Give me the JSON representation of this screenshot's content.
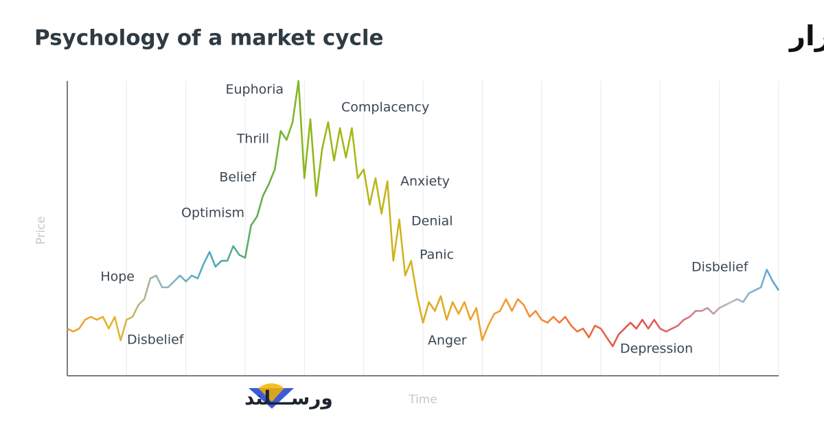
{
  "chart_data": {
    "type": "line",
    "title": "Psychology of a market cycle",
    "subtitle": "نمودار چرخه روانشناسی بازار",
    "brand": "ورســـلند",
    "y_label": "Price",
    "x_label": "Time",
    "ylim": [
      0,
      100
    ],
    "grid": true,
    "colors": [
      "#f29a2e",
      "#e8b52a",
      "#8fb6c2",
      "#4fa8c8",
      "#5eae4e",
      "#8cb81c",
      "#a8b818",
      "#d2b41e",
      "#e2aa22",
      "#f0a030",
      "#f08a3a",
      "#ea6a40",
      "#e5504a",
      "#d9707e",
      "#b4b8c6",
      "#4fa8d0"
    ],
    "values": [
      16,
      15,
      16,
      19,
      20,
      19,
      20,
      16,
      20,
      12,
      19,
      20,
      24,
      26,
      33,
      34,
      30,
      30,
      32,
      34,
      32,
      34,
      33,
      38,
      42,
      37,
      39,
      39,
      44,
      41,
      40,
      51,
      54,
      61,
      65,
      70,
      83,
      80,
      86,
      100,
      67,
      87,
      61,
      77,
      86,
      73,
      84,
      74,
      84,
      67,
      70,
      58,
      67,
      55,
      66,
      39,
      53,
      34,
      39,
      27,
      18,
      25,
      22,
      27,
      19,
      25,
      21,
      25,
      19,
      23,
      12,
      17,
      21,
      22,
      26,
      22,
      26,
      24,
      20,
      22,
      19,
      18,
      20,
      18,
      20,
      17,
      15,
      16,
      13,
      17,
      16,
      13,
      10,
      14,
      16,
      18,
      16,
      19,
      16,
      19,
      16,
      15,
      16,
      17,
      19,
      20,
      22,
      22,
      23,
      21,
      23,
      24,
      25,
      26,
      25,
      28,
      29,
      30,
      36,
      32,
      29
    ],
    "annotations": [
      "Euphoria",
      "Thrill",
      "Belief",
      "Optimism",
      "Hope",
      "Disbelief",
      "Complacency",
      "Anxiety",
      "Denial",
      "Panic",
      "Anger",
      "Depression",
      "Disbelief"
    ]
  }
}
